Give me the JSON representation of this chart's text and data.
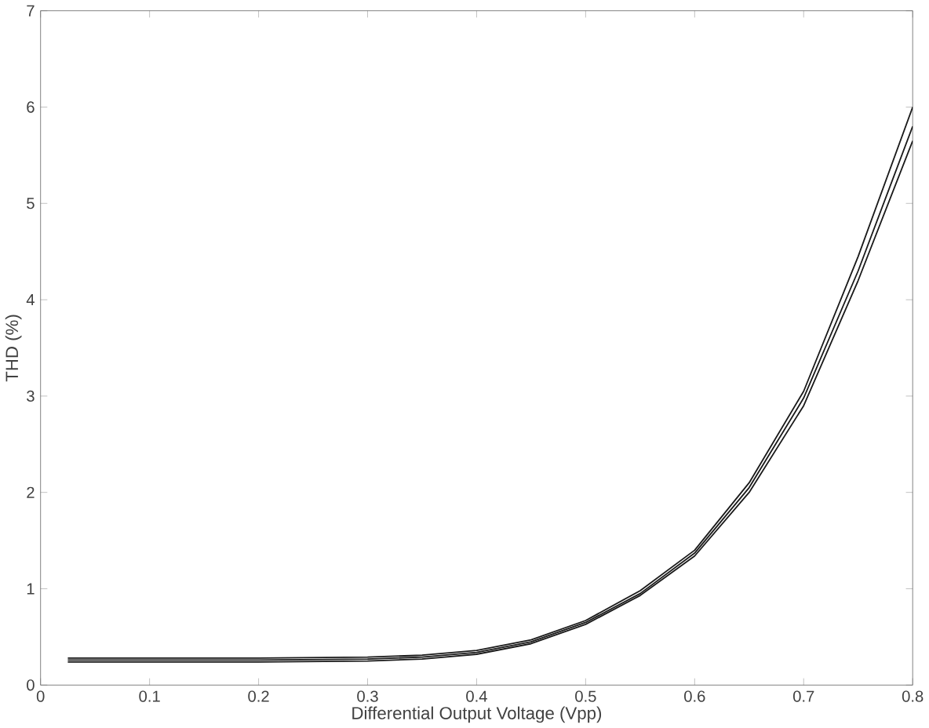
{
  "chart_data": {
    "type": "line",
    "xlabel": "Differential Output Voltage (Vpp)",
    "ylabel": "THD (%)",
    "xlim": [
      0,
      0.8
    ],
    "ylim": [
      0,
      7
    ],
    "xticks": [
      0,
      0.1,
      0.2,
      0.3,
      0.4,
      0.5,
      0.6,
      0.7,
      0.8
    ],
    "yticks": [
      0,
      1,
      2,
      3,
      4,
      5,
      6,
      7
    ],
    "grid": false,
    "legend": false,
    "x": [
      0.025,
      0.1,
      0.2,
      0.3,
      0.35,
      0.4,
      0.45,
      0.5,
      0.55,
      0.6,
      0.65,
      0.7,
      0.75,
      0.8
    ],
    "series": [
      {
        "color": "#1a1a1a",
        "values": [
          0.28,
          0.28,
          0.28,
          0.29,
          0.31,
          0.36,
          0.47,
          0.67,
          0.98,
          1.4,
          2.1,
          3.05,
          4.45,
          6.0
        ]
      },
      {
        "color": "#1a1a1a",
        "values": [
          0.26,
          0.26,
          0.26,
          0.27,
          0.29,
          0.34,
          0.45,
          0.65,
          0.95,
          1.37,
          2.05,
          2.98,
          4.3,
          5.8
        ]
      },
      {
        "color": "#1a1a1a",
        "values": [
          0.24,
          0.24,
          0.24,
          0.25,
          0.27,
          0.32,
          0.43,
          0.63,
          0.93,
          1.34,
          2.0,
          2.9,
          4.2,
          5.65
        ]
      }
    ]
  }
}
